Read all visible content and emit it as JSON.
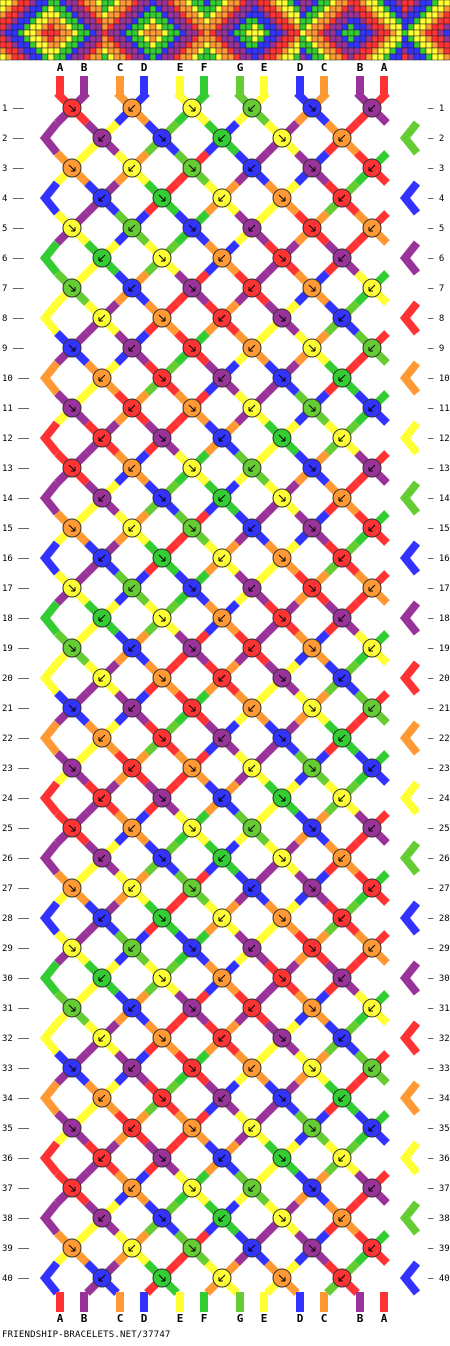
{
  "pattern_id": "37747",
  "footer": "FRIENDSHIP-BRACELETS.NET/37747",
  "string_labels": [
    "A",
    "B",
    "C",
    "D",
    "E",
    "F",
    "G",
    "E",
    "D",
    "C",
    "B",
    "A"
  ],
  "colors": {
    "A": "#ff3333",
    "B": "#993399",
    "C": "#ff9933",
    "D": "#3333ff",
    "E": "#ffff33",
    "F": "#33cc33",
    "G": "#66cc33"
  },
  "row_count": 40,
  "row_numbers": [
    "1",
    "2",
    "3",
    "4",
    "5",
    "6",
    "7",
    "8",
    "9",
    "10",
    "11",
    "12",
    "13",
    "14",
    "15",
    "16",
    "17",
    "18",
    "19",
    "20",
    "21",
    "22",
    "23",
    "24",
    "25",
    "26",
    "27",
    "28",
    "29",
    "30",
    "31",
    "32",
    "33",
    "34",
    "35",
    "36",
    "37",
    "38",
    "39",
    "40"
  ],
  "knot_type": "forward-knots and backward-knots (arrow glyphs on knot circles)",
  "preview_band": "woven diamond preview strip at top of pattern"
}
